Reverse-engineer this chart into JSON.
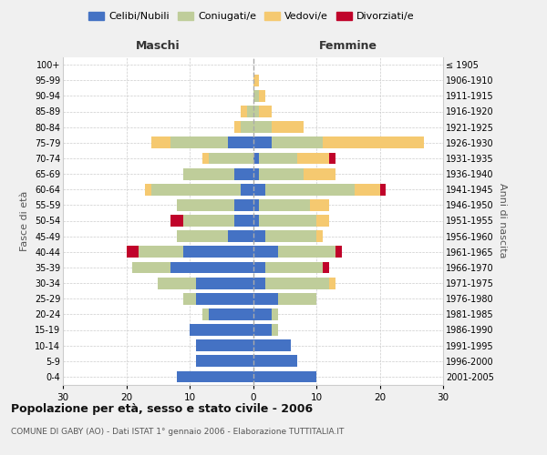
{
  "age_groups": [
    "0-4",
    "5-9",
    "10-14",
    "15-19",
    "20-24",
    "25-29",
    "30-34",
    "35-39",
    "40-44",
    "45-49",
    "50-54",
    "55-59",
    "60-64",
    "65-69",
    "70-74",
    "75-79",
    "80-84",
    "85-89",
    "90-94",
    "95-99",
    "100+"
  ],
  "birth_years": [
    "2001-2005",
    "1996-2000",
    "1991-1995",
    "1986-1990",
    "1981-1985",
    "1976-1980",
    "1971-1975",
    "1966-1970",
    "1961-1965",
    "1956-1960",
    "1951-1955",
    "1946-1950",
    "1941-1945",
    "1936-1940",
    "1931-1935",
    "1926-1930",
    "1921-1925",
    "1916-1920",
    "1911-1915",
    "1906-1910",
    "≤ 1905"
  ],
  "males": {
    "celibi": [
      12,
      9,
      9,
      10,
      7,
      9,
      9,
      13,
      11,
      4,
      3,
      3,
      2,
      3,
      0,
      4,
      0,
      0,
      0,
      0,
      0
    ],
    "coniugati": [
      0,
      0,
      0,
      0,
      1,
      2,
      6,
      6,
      7,
      8,
      8,
      9,
      14,
      8,
      7,
      9,
      2,
      1,
      0,
      0,
      0
    ],
    "vedovi": [
      0,
      0,
      0,
      0,
      0,
      0,
      0,
      0,
      0,
      0,
      0,
      0,
      1,
      0,
      1,
      3,
      1,
      1,
      0,
      0,
      0
    ],
    "divorziati": [
      0,
      0,
      0,
      0,
      0,
      0,
      0,
      0,
      2,
      0,
      2,
      0,
      0,
      0,
      0,
      0,
      0,
      0,
      0,
      0,
      0
    ]
  },
  "females": {
    "nubili": [
      10,
      7,
      6,
      3,
      3,
      4,
      2,
      2,
      4,
      2,
      1,
      1,
      2,
      1,
      1,
      3,
      0,
      0,
      0,
      0,
      0
    ],
    "coniugate": [
      0,
      0,
      0,
      1,
      1,
      6,
      10,
      9,
      9,
      8,
      9,
      8,
      14,
      7,
      6,
      8,
      3,
      1,
      1,
      0,
      0
    ],
    "vedove": [
      0,
      0,
      0,
      0,
      0,
      0,
      1,
      0,
      0,
      1,
      2,
      3,
      4,
      5,
      5,
      16,
      5,
      2,
      1,
      1,
      0
    ],
    "divorziate": [
      0,
      0,
      0,
      0,
      0,
      0,
      0,
      1,
      1,
      0,
      0,
      0,
      1,
      0,
      1,
      0,
      0,
      0,
      0,
      0,
      0
    ]
  },
  "color_celibi": "#4472C4",
  "color_coniugati": "#BFCD9A",
  "color_vedovi": "#F5C970",
  "color_divorziati": "#C0032A",
  "xlim": 30,
  "title": "Popolazione per età, sesso e stato civile - 2006",
  "subtitle": "COMUNE DI GABY (AO) - Dati ISTAT 1° gennaio 2006 - Elaborazione TUTTITALIA.IT",
  "ylabel_left": "Fasce di età",
  "ylabel_right": "Anni di nascita",
  "xlabel_maschi": "Maschi",
  "xlabel_femmine": "Femmine",
  "bg_color": "#f0f0f0",
  "plot_bg": "#ffffff"
}
